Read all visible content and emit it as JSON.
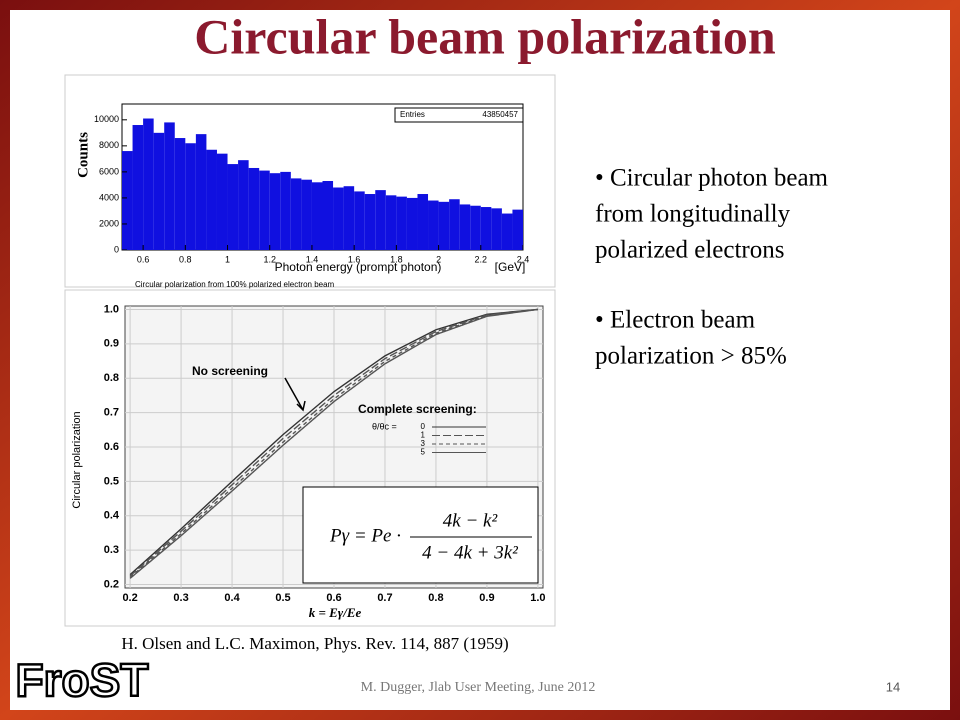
{
  "header": {
    "title": "Circular beam polarization"
  },
  "bullets": [
    [
      "• Circular photon beam",
      "from longitudinally",
      "polarized electrons"
    ],
    [
      "• Electron beam",
      "polarization > 85%"
    ]
  ],
  "citation": "H. Olsen and L.C. Maximon, Phys. Rev. 114, 887 (1959)",
  "footer": "M. Dugger, Jlab User Meeting, June 2012",
  "page_number": "14",
  "logo": "FroST",
  "chart_data": [
    {
      "type": "histogram",
      "ylabel": "Counts",
      "xlabel": "Photon energy (prompt photon)",
      "xunit": "[GeV]",
      "stats_label": "Entries",
      "stats_value": "43850457",
      "color": "#1010e0",
      "bins": [
        0.5,
        0.55,
        0.6,
        0.65,
        0.7,
        0.75,
        0.8,
        0.85,
        0.9,
        0.95,
        1.0,
        1.05,
        1.1,
        1.15,
        1.2,
        1.25,
        1.3,
        1.35,
        1.4,
        1.45,
        1.5,
        1.55,
        1.6,
        1.65,
        1.7,
        1.75,
        1.8,
        1.85,
        1.9,
        1.95,
        2.0,
        2.05,
        2.1,
        2.15,
        2.2,
        2.25,
        2.3,
        2.35,
        2.4
      ],
      "values": [
        7600,
        9600,
        10100,
        9000,
        9800,
        8600,
        8200,
        8900,
        7700,
        7400,
        6600,
        6900,
        6300,
        6100,
        5900,
        6000,
        5500,
        5400,
        5200,
        5300,
        4800,
        4900,
        4500,
        4300,
        4600,
        4200,
        4100,
        4000,
        4300,
        3800,
        3700,
        3900,
        3500,
        3400,
        3300,
        3200,
        2800,
        3100
      ],
      "xlim": [
        0.5,
        2.4
      ],
      "ylim": [
        0,
        10600
      ],
      "xticks": [
        0.6,
        0.8,
        1,
        1.2,
        1.4,
        1.6,
        1.8,
        2,
        2.2,
        2.4
      ],
      "yticks": [
        0,
        2000,
        4000,
        6000,
        8000,
        10000
      ]
    },
    {
      "type": "line",
      "title": "Circular polarization from 100% polarized electron beam",
      "ylabel": "Circular polarization",
      "xlabel": "k = Eγ/Ee",
      "annotation": "No screening",
      "legend_title": "Complete screening:",
      "legend_subtitle": "θ/θc =",
      "formula": {
        "lhs": "Pγ = Pe ·",
        "numerator": "4k − k²",
        "denominator": "4 − 4k + 3k²"
      },
      "grid": true,
      "x": [
        0.2,
        0.3,
        0.4,
        0.5,
        0.6,
        0.7,
        0.8,
        0.9,
        1.0
      ],
      "series": [
        {
          "name": "0",
          "color": "#333333",
          "values": [
            0.229,
            0.362,
            0.5,
            0.636,
            0.761,
            0.865,
            0.941,
            0.986,
            1.0
          ]
        },
        {
          "name": "1",
          "color": "#555555",
          "values": [
            0.225,
            0.355,
            0.49,
            0.625,
            0.75,
            0.857,
            0.936,
            0.984,
            1.0
          ]
        },
        {
          "name": "3",
          "color": "#555555",
          "values": [
            0.221,
            0.348,
            0.48,
            0.614,
            0.74,
            0.849,
            0.931,
            0.982,
            1.0
          ]
        },
        {
          "name": "5",
          "color": "#555555",
          "values": [
            0.218,
            0.342,
            0.472,
            0.605,
            0.732,
            0.842,
            0.927,
            0.98,
            1.0
          ]
        }
      ],
      "xlim": [
        0.19,
        1.01
      ],
      "ylim": [
        0.19,
        1.01
      ],
      "xticks": [
        0.2,
        0.3,
        0.4,
        0.5,
        0.6,
        0.7,
        0.8,
        0.9,
        {
          "value": 1,
          "label": "1.0"
        }
      ],
      "yticks": [
        0.2,
        0.3,
        0.4,
        0.5,
        0.6,
        0.7,
        0.8,
        0.9,
        {
          "value": 1,
          "label": "1.0"
        }
      ]
    }
  ]
}
